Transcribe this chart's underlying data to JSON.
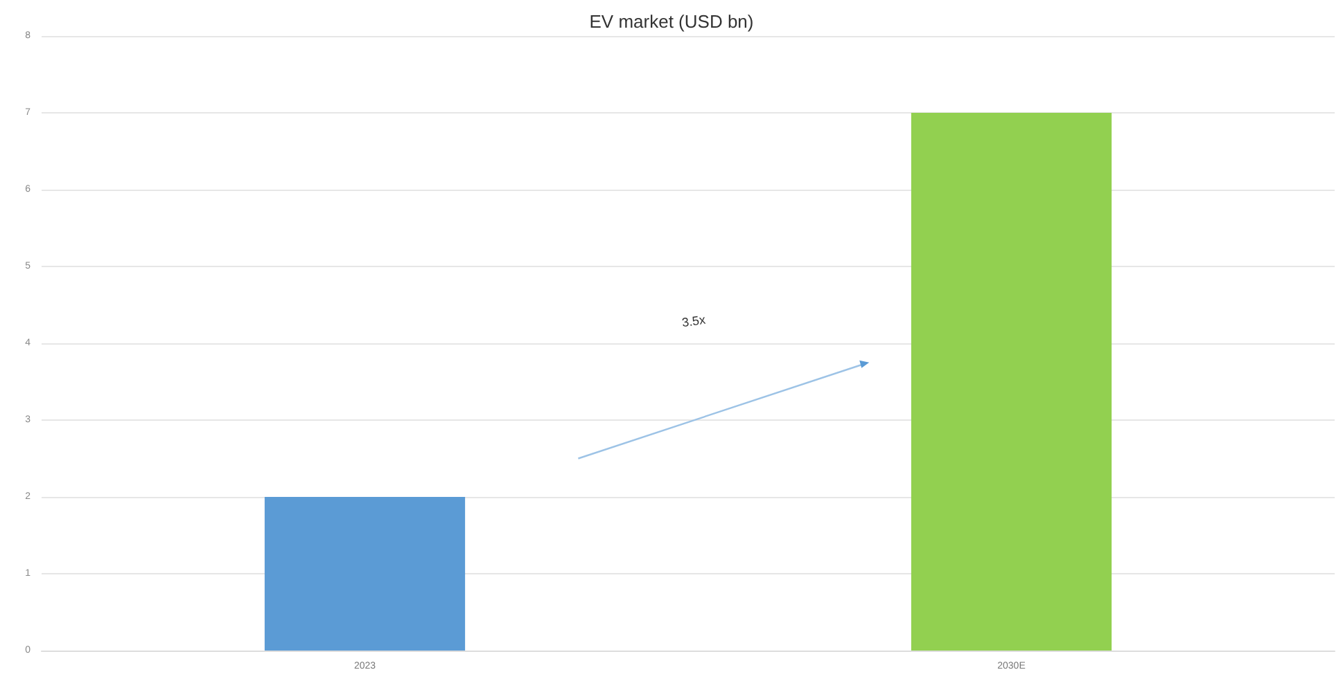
{
  "chart_data": {
    "type": "bar",
    "title": "EV market (USD bn)",
    "categories": [
      "2023",
      "2030E"
    ],
    "values": [
      2,
      7
    ],
    "colors": [
      "#5b9bd5",
      "#92d050"
    ],
    "ylim": [
      0,
      8
    ],
    "yticks": [
      0,
      1,
      2,
      3,
      4,
      5,
      6,
      7,
      8
    ],
    "grid": "y",
    "annotations": [
      "3.5x"
    ]
  }
}
